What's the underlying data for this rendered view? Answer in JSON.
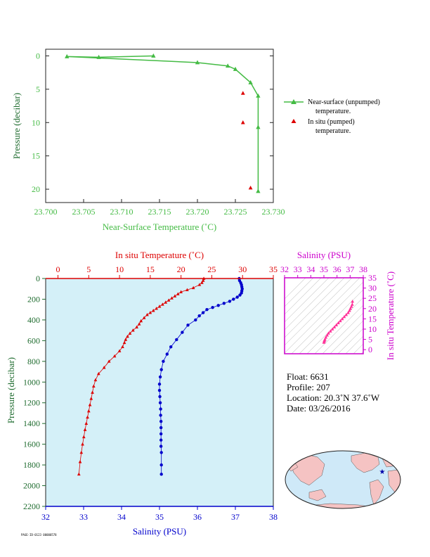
{
  "top_chart": {
    "xlabel": "Near-Surface Temperature (˚C)",
    "ylabel": "Pressure (decibar)",
    "xticks": [
      "23.700",
      "23.705",
      "23.710",
      "23.715",
      "23.720",
      "23.725",
      "23.730"
    ],
    "yticks": [
      "0",
      "5",
      "10",
      "15",
      "20"
    ],
    "legend": [
      {
        "label": "Near-surface (unpumped)",
        "label2": "temperature."
      },
      {
        "label": "In situ (pumped)",
        "label2": "temperature."
      }
    ]
  },
  "main_chart": {
    "top_axis_label": "In situ Temperature (˚C)",
    "bottom_axis_label": "Salinity (PSU)",
    "ylabel": "Pressure (decibar)",
    "temp_ticks": [
      "0",
      "5",
      "10",
      "15",
      "20",
      "25",
      "30",
      "35"
    ],
    "sal_ticks": [
      "32",
      "33",
      "34",
      "35",
      "36",
      "37",
      "38"
    ],
    "p_ticks": [
      "0",
      "200",
      "400",
      "600",
      "800",
      "1000",
      "1200",
      "1400",
      "1600",
      "1800",
      "2000",
      "2200"
    ]
  },
  "ts_chart": {
    "top_label": "Salinity (PSU)",
    "right_label": "In situ Temperature (˚C)",
    "sal_ticks": [
      "32",
      "33",
      "34",
      "35",
      "36",
      "37",
      "38"
    ],
    "temp_ticks": [
      "0",
      "5",
      "10",
      "15",
      "20",
      "25",
      "30",
      "35"
    ]
  },
  "info": {
    "float": "Float:  6631",
    "profile": "Profile:  207",
    "location": "Location:  20.3˚N  37.6˚W",
    "date": "Date:  03/26/2016"
  },
  "footer_code": "PAGE-ID-0123 00000578",
  "colors": {
    "green": "#44bb44",
    "red": "#dd0000",
    "blue": "#0000cc",
    "magenta": "#cc00cc",
    "plot_bg": "#d4f0f8",
    "axis": "#222222"
  },
  "chart_data": [
    {
      "type": "line",
      "title": "",
      "xlabel": "Near-Surface Temperature (˚C)",
      "ylabel": "Pressure (decibar)",
      "xlim": [
        23.7,
        23.73
      ],
      "ylim": [
        22,
        -1
      ],
      "series": [
        {
          "name": "Near-surface (unpumped) temperature.",
          "x": [
            23.7142,
            23.707,
            23.7028,
            23.72,
            23.724,
            23.725,
            23.727,
            23.728,
            23.728,
            23.728
          ],
          "y": [
            0.0,
            0.2,
            0.1,
            1.0,
            1.5,
            2.0,
            4.0,
            6.0,
            10.7,
            20.3
          ]
        },
        {
          "name": "In situ (pumped) temperature.",
          "x": [
            23.726,
            23.726,
            23.727
          ],
          "y": [
            5.6,
            10.0,
            19.8
          ]
        }
      ]
    },
    {
      "type": "scatter",
      "title": "",
      "ylabel": "Pressure (decibar)",
      "ylim": [
        2200,
        0
      ],
      "series": [
        {
          "name": "In situ Temperature (˚C)",
          "axis": "top",
          "xlim": [
            -2,
            35
          ],
          "x": [
            23.7,
            23.6,
            23.4,
            23.0,
            22.0,
            21.0,
            20.0,
            19.5,
            19.0,
            18.5,
            18.0,
            17.5,
            17.0,
            16.5,
            16.0,
            15.5,
            15.0,
            14.5,
            14.0,
            13.5,
            13.2,
            12.8,
            12.2,
            11.7,
            11.3,
            11.0,
            10.8,
            10.5,
            10.0,
            9.2,
            8.3,
            7.5,
            6.6,
            6.1,
            5.8,
            5.6,
            5.4,
            5.2,
            5.0,
            4.8,
            4.6,
            4.4,
            4.2,
            4.0,
            3.8,
            3.6,
            3.4
          ],
          "y": [
            0,
            20,
            40,
            60,
            90,
            110,
            130,
            150,
            170,
            190,
            210,
            230,
            250,
            270,
            290,
            310,
            330,
            350,
            380,
            410,
            440,
            470,
            500,
            530,
            560,
            590,
            620,
            660,
            700,
            750,
            800,
            860,
            920,
            980,
            1040,
            1100,
            1160,
            1220,
            1280,
            1340,
            1400,
            1460,
            1530,
            1600,
            1680,
            1770,
            1890
          ]
        },
        {
          "name": "Salinity (PSU)",
          "axis": "bottom",
          "xlim": [
            32,
            38
          ],
          "x": [
            37.1,
            37.11,
            37.14,
            37.16,
            37.17,
            37.18,
            37.17,
            37.16,
            37.12,
            37.05,
            36.95,
            36.85,
            36.7,
            36.55,
            36.4,
            36.25,
            36.15,
            36.05,
            35.95,
            35.75,
            35.6,
            35.45,
            35.3,
            35.2,
            35.1,
            35.05,
            35.02,
            35.0,
            35.0,
            35.01,
            35.02,
            35.03,
            35.03,
            35.04,
            35.04,
            35.04,
            35.04,
            35.04,
            35.05,
            35.05,
            35.05
          ],
          "y": [
            0,
            20,
            40,
            60,
            80,
            100,
            120,
            140,
            160,
            180,
            200,
            220,
            240,
            260,
            280,
            300,
            330,
            360,
            400,
            450,
            520,
            590,
            660,
            730,
            800,
            880,
            950,
            1020,
            1080,
            1140,
            1200,
            1260,
            1320,
            1380,
            1440,
            1500,
            1560,
            1620,
            1680,
            1800,
            1890
          ]
        }
      ]
    },
    {
      "type": "scatter",
      "title": "",
      "xlabel": "Salinity (PSU)",
      "ylabel": "In situ Temperature (˚C)",
      "xlim": [
        32,
        38
      ],
      "ylim": [
        -2,
        35
      ],
      "series": [
        {
          "name": "T-S profile",
          "x": [
            37.18,
            37.16,
            37.1,
            37.02,
            36.95,
            36.85,
            36.7,
            36.55,
            36.4,
            36.25,
            36.1,
            35.95,
            35.8,
            35.65,
            35.5,
            35.35,
            35.25,
            35.15,
            35.08,
            35.04,
            35.02,
            35.0
          ],
          "y": [
            23.5,
            22.0,
            21.0,
            20.0,
            19.0,
            18.0,
            17.0,
            16.0,
            15.0,
            14.0,
            13.0,
            12.0,
            11.0,
            10.0,
            9.0,
            8.0,
            7.0,
            6.0,
            5.0,
            4.5,
            4.0,
            3.5
          ]
        }
      ]
    }
  ],
  "map": {
    "marker": {
      "lat": 20.3,
      "lon": -37.6
    }
  }
}
